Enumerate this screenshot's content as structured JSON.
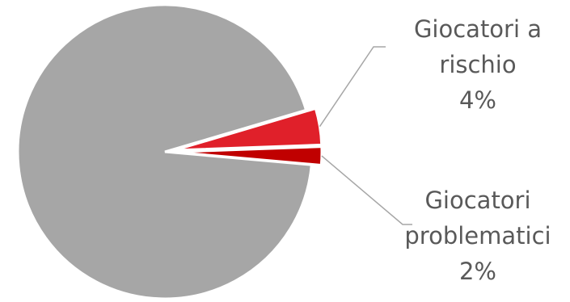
{
  "chart_data": {
    "type": "pie",
    "slices": [
      {
        "key": "gray",
        "label": "",
        "value": 94,
        "color": "#A6A6A6",
        "exploded": false
      },
      {
        "key": "at_risk",
        "label": "Giocatori a rischio",
        "value": 4,
        "value_label": "4%",
        "color": "#E0202A",
        "exploded": true
      },
      {
        "key": "problem",
        "label": "Giocatori problematici",
        "value": 2,
        "value_label": "2%",
        "color": "#C00000",
        "exploded": true
      }
    ],
    "title": "",
    "legend": "none"
  },
  "labels": {
    "at_risk": {
      "name_line1": "Giocatori a",
      "name_line2": "rischio",
      "value": "4%"
    },
    "problem": {
      "name_line1": "Giocatori",
      "name_line2": "problematici",
      "value": "2%"
    }
  }
}
